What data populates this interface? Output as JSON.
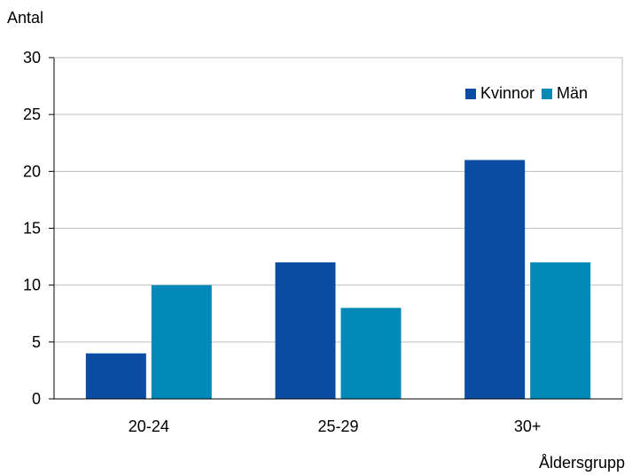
{
  "chart_data": {
    "type": "bar",
    "ylabel": "Antal",
    "xlabel": "Åldersgrupp",
    "categories": [
      "20-24",
      "25-29",
      "30+"
    ],
    "series": [
      {
        "name": "Kvinnor",
        "values": [
          4,
          12,
          21
        ],
        "color": "#0a4da2"
      },
      {
        "name": "Män",
        "values": [
          10,
          8,
          12
        ],
        "color": "#0289b8"
      }
    ],
    "ylim": [
      0,
      30
    ],
    "yticks": [
      0,
      5,
      10,
      15,
      20,
      25,
      30
    ],
    "grid": true,
    "legend_position": "top-right"
  }
}
